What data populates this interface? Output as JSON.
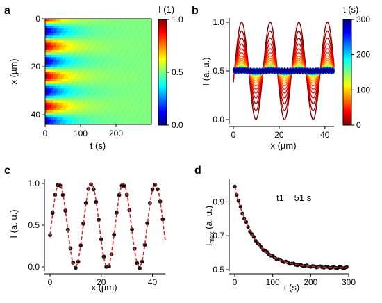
{
  "chart_data": [
    {
      "panel": "a",
      "type": "heatmap",
      "xlabel": "t (s)",
      "ylabel": "x (µm)",
      "xlim": [
        0,
        300
      ],
      "ylim": [
        0,
        44
      ],
      "y_inverted": true,
      "xticks": [
        0,
        100,
        200
      ],
      "yticks": [
        0,
        20,
        40
      ],
      "colorbar": {
        "label": "I (1)",
        "range": [
          0.0,
          1.0
        ],
        "ticks": [
          "0.0",
          "0.5",
          "1.0"
        ],
        "colormap": "jet"
      },
      "pattern": {
        "spatial_period_um": 12.5,
        "initial_amplitude": 0.5,
        "offset": 0.5,
        "decay_time_s": 51
      }
    },
    {
      "panel": "b",
      "type": "line",
      "xlabel": "x (µm)",
      "ylabel": "I (a. u.)",
      "xlim": [
        0,
        44
      ],
      "ylim": [
        0,
        1
      ],
      "xticks": [
        0,
        20,
        40
      ],
      "yticks": [
        "0.0",
        "0.5",
        "1.0"
      ],
      "colorbar": {
        "label": "t (s)",
        "range": [
          0,
          300
        ],
        "ticks": [
          "0",
          "100",
          "200",
          "300"
        ],
        "colormap": "jet_r"
      },
      "series_times_s": [
        0,
        10,
        20,
        30,
        40,
        50,
        60,
        70,
        80,
        90,
        100,
        120,
        140,
        160,
        180,
        200,
        220,
        240,
        260,
        280,
        300
      ],
      "pattern": {
        "spatial_period_um": 12.5,
        "initial_amplitude": 0.5,
        "offset": 0.5,
        "decay_time_s": 51
      }
    },
    {
      "panel": "c",
      "type": "scatter",
      "xlabel": "x (µm)",
      "ylabel": "I (a. u.)",
      "xlim": [
        0,
        45
      ],
      "ylim": [
        0,
        1
      ],
      "xticks": [
        0,
        20,
        40
      ],
      "yticks": [
        "0.0",
        "0.5",
        "1.0"
      ],
      "fit": {
        "style": "dashed",
        "color": "#e0202a",
        "spatial_period_um": 12.5,
        "offset": 0.5,
        "amplitude": 0.5
      },
      "x_step_um": 1
    },
    {
      "panel": "d",
      "type": "scatter",
      "xlabel": "t (s)",
      "ylabel": "Imax (a. u.)",
      "ylabel_main": "I",
      "ylabel_sub": "max",
      "ylabel_rest": " (a. u.)",
      "xlim": [
        0,
        300
      ],
      "ylim": [
        0.5,
        1.0
      ],
      "xticks": [
        0,
        100,
        200,
        300
      ],
      "yticks": [
        "0.5",
        "0.7",
        "0.9"
      ],
      "annotation": "t1 = 51 s",
      "fit": {
        "style": "dashed",
        "color": "#e0202a",
        "plateau": 0.51,
        "amplitude": 0.48,
        "decay_time_s": 51
      },
      "t_step_s": 5
    }
  ]
}
